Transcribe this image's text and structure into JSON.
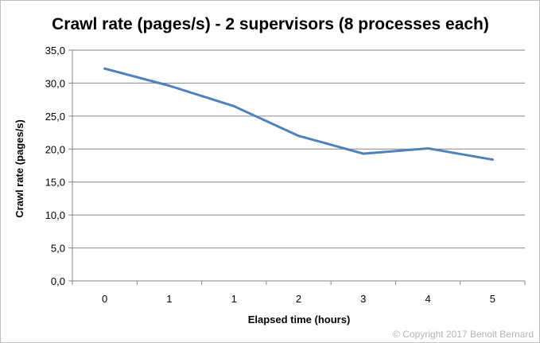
{
  "chart_data": {
    "type": "line",
    "title": "Crawl rate (pages/s) - 2 supervisors (8 processes each)",
    "xlabel": "Elapsed time (hours)",
    "ylabel": "Crawl rate (pages/s)",
    "categories": [
      "0",
      "1",
      "1",
      "2",
      "3",
      "4",
      "5"
    ],
    "series": [
      {
        "values": [
          32.2,
          29.6,
          26.5,
          22.0,
          19.3,
          20.1,
          18.4
        ]
      }
    ],
    "ylim": [
      0,
      35
    ],
    "yticks": [
      "0,0",
      "5,0",
      "10,0",
      "15,0",
      "20,0",
      "25,0",
      "30,0",
      "35,0"
    ],
    "grid": true,
    "legend": "none",
    "line_color": "#4f81bd"
  },
  "footer": {
    "copyright": "© Copyright 2017 Benoit Bernard"
  }
}
